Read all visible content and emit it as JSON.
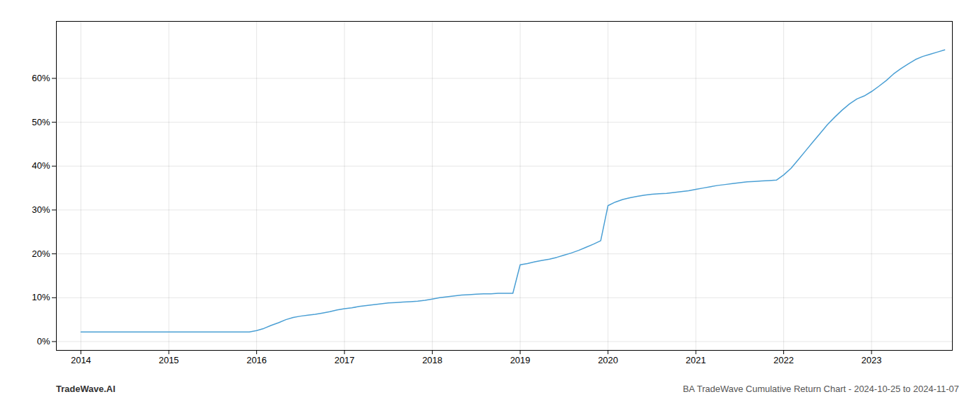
{
  "chart_data": {
    "type": "line",
    "title": "BA TradeWave Cumulative Return Chart - 2024-10-25 to 2024-11-07",
    "annotations": [
      "TradeWave.AI"
    ],
    "color": "#4a9fd4",
    "x": [
      2014.0,
      2014.083,
      2014.167,
      2014.25,
      2014.333,
      2014.417,
      2014.5,
      2014.583,
      2014.667,
      2014.75,
      2014.833,
      2014.917,
      2015.0,
      2015.083,
      2015.167,
      2015.25,
      2015.333,
      2015.417,
      2015.5,
      2015.583,
      2015.667,
      2015.75,
      2015.833,
      2015.917,
      2016.0,
      2016.083,
      2016.167,
      2016.25,
      2016.333,
      2016.417,
      2016.5,
      2016.583,
      2016.667,
      2016.75,
      2016.833,
      2016.917,
      2017.0,
      2017.083,
      2017.167,
      2017.25,
      2017.333,
      2017.417,
      2017.5,
      2017.583,
      2017.667,
      2017.75,
      2017.833,
      2017.917,
      2018.0,
      2018.083,
      2018.167,
      2018.25,
      2018.333,
      2018.417,
      2018.5,
      2018.583,
      2018.667,
      2018.75,
      2018.833,
      2018.917,
      2019.0,
      2019.083,
      2019.167,
      2019.25,
      2019.333,
      2019.417,
      2019.5,
      2019.583,
      2019.667,
      2019.75,
      2019.833,
      2019.917,
      2020.0,
      2020.083,
      2020.167,
      2020.25,
      2020.333,
      2020.417,
      2020.5,
      2020.583,
      2020.667,
      2020.75,
      2020.833,
      2020.917,
      2021.0,
      2021.083,
      2021.167,
      2021.25,
      2021.333,
      2021.417,
      2021.5,
      2021.583,
      2021.667,
      2021.75,
      2021.833,
      2021.917,
      2022.0,
      2022.083,
      2022.167,
      2022.25,
      2022.333,
      2022.417,
      2022.5,
      2022.583,
      2022.667,
      2022.75,
      2022.833,
      2022.917,
      2023.0,
      2023.083,
      2023.167,
      2023.25,
      2023.333,
      2023.417,
      2023.5,
      2023.583,
      2023.667,
      2023.75,
      2023.833
    ],
    "values": [
      0.022,
      0.022,
      0.022,
      0.022,
      0.022,
      0.022,
      0.022,
      0.022,
      0.022,
      0.022,
      0.022,
      0.022,
      0.022,
      0.022,
      0.022,
      0.022,
      0.022,
      0.022,
      0.022,
      0.022,
      0.022,
      0.022,
      0.022,
      0.022,
      0.025,
      0.03,
      0.037,
      0.043,
      0.05,
      0.055,
      0.058,
      0.06,
      0.062,
      0.065,
      0.068,
      0.072,
      0.075,
      0.077,
      0.08,
      0.082,
      0.084,
      0.086,
      0.088,
      0.089,
      0.09,
      0.091,
      0.092,
      0.094,
      0.097,
      0.1,
      0.102,
      0.104,
      0.106,
      0.107,
      0.108,
      0.109,
      0.109,
      0.11,
      0.11,
      0.11,
      0.175,
      0.178,
      0.182,
      0.185,
      0.188,
      0.192,
      0.197,
      0.202,
      0.208,
      0.215,
      0.222,
      0.23,
      0.31,
      0.318,
      0.324,
      0.328,
      0.331,
      0.334,
      0.336,
      0.337,
      0.338,
      0.34,
      0.342,
      0.344,
      0.347,
      0.35,
      0.353,
      0.356,
      0.358,
      0.36,
      0.362,
      0.364,
      0.365,
      0.366,
      0.367,
      0.368,
      0.38,
      0.395,
      0.415,
      0.435,
      0.455,
      0.475,
      0.495,
      0.512,
      0.528,
      0.542,
      0.553,
      0.56,
      0.57,
      0.582,
      0.595,
      0.61,
      0.622,
      0.633,
      0.643,
      0.65,
      0.655,
      0.66,
      0.665
    ],
    "xlim": [
      2013.72,
      2023.92
    ],
    "ylim": [
      -0.02,
      0.73
    ],
    "xticks": [
      2014,
      2015,
      2016,
      2017,
      2018,
      2019,
      2020,
      2021,
      2022,
      2023
    ],
    "yticks": [
      {
        "value": 0.0,
        "label": "0%"
      },
      {
        "value": 0.1,
        "label": "10%"
      },
      {
        "value": 0.2,
        "label": "20%"
      },
      {
        "value": 0.3,
        "label": "30%"
      },
      {
        "value": 0.4,
        "label": "40%"
      },
      {
        "value": 0.5,
        "label": "50%"
      },
      {
        "value": 0.6,
        "label": "60%"
      }
    ],
    "grid": true
  }
}
